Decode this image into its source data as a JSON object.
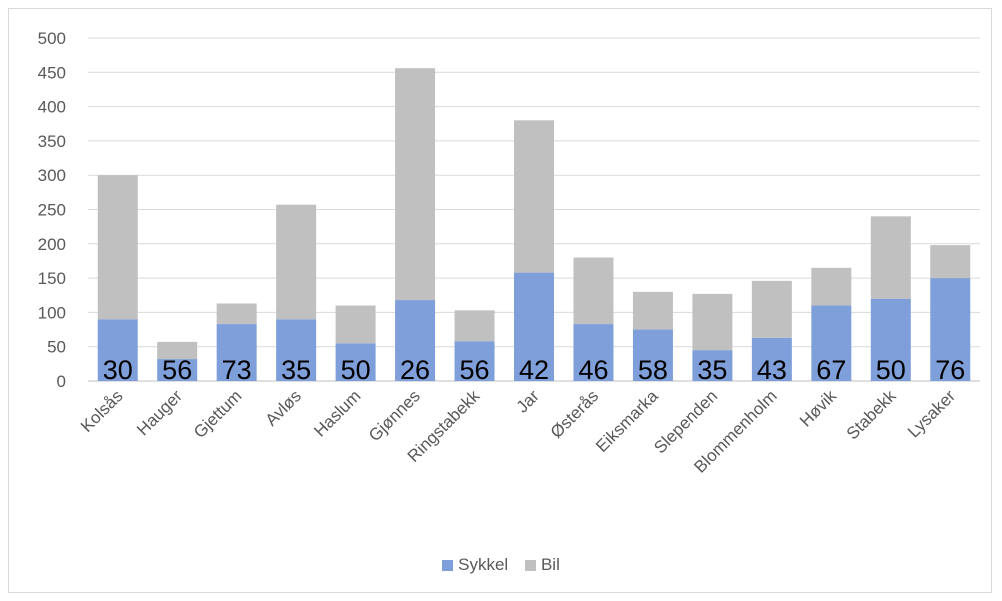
{
  "chart_data": {
    "type": "bar",
    "stacked": true,
    "categories": [
      "Kolsås",
      "Hauger",
      "Gjettum",
      "Avløs",
      "Haslum",
      "Gjønnes",
      "Ringstabekk",
      "Jar",
      "Østerås",
      "Eiksmarka",
      "Slependen",
      "Blommenholm",
      "Høvik",
      "Stabekk",
      "Lysaker"
    ],
    "series": [
      {
        "name": "Sykkel",
        "color": "#7f9fda",
        "values": [
          90,
          32,
          83,
          90,
          55,
          118,
          58,
          158,
          83,
          75,
          45,
          63,
          110,
          120,
          150
        ]
      },
      {
        "name": "Bil",
        "color": "#c0c0c0",
        "values": [
          210,
          25,
          30,
          167,
          55,
          338,
          45,
          222,
          97,
          55,
          82,
          83,
          55,
          120,
          48
        ]
      }
    ],
    "data_labels": [
      "30",
      "56",
      "73",
      "35",
      "50",
      "26",
      "56",
      "42",
      "46",
      "58",
      "35",
      "43",
      "67",
      "50",
      "76"
    ],
    "ylim": [
      0,
      500
    ],
    "yticks": [
      "0",
      "50",
      "100",
      "150",
      "200",
      "250",
      "300",
      "350",
      "400",
      "450",
      "500"
    ],
    "grid": true,
    "legend_position": "bottom",
    "title": "",
    "xlabel": "",
    "ylabel": ""
  }
}
